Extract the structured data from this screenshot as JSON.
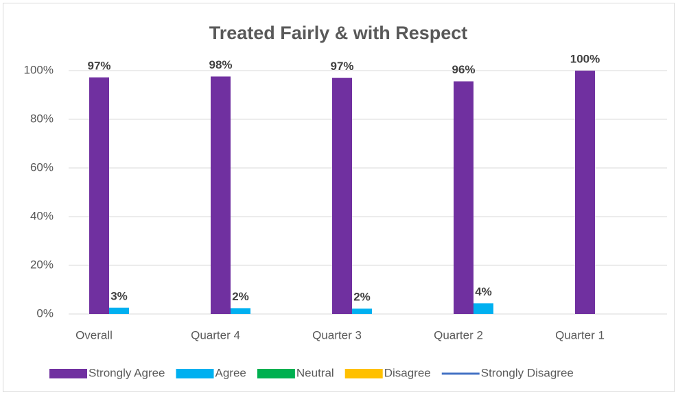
{
  "chart_data": {
    "type": "bar",
    "title": "Treated Fairly & with Respect",
    "categories": [
      "Overall",
      "Quarter 4",
      "Quarter 3",
      "Quarter 2",
      "Quarter 1"
    ],
    "series": [
      {
        "name": "Strongly Agree",
        "color": "#7030a0",
        "values": [
          97.2,
          97.6,
          97.0,
          95.6,
          100
        ],
        "value_labels": [
          "97%",
          "98%",
          "97%",
          "96%",
          "100%"
        ]
      },
      {
        "name": "Agree",
        "color": "#00b0f0",
        "values": [
          2.6,
          2.4,
          2.2,
          4.4,
          null
        ],
        "value_labels": [
          "3%",
          "2%",
          "2%",
          "4%",
          null
        ]
      },
      {
        "name": "Neutral",
        "color": "#00b050",
        "values": [
          null,
          null,
          null,
          null,
          null
        ]
      },
      {
        "name": "Disagree",
        "color": "#ffc000",
        "values": [
          null,
          null,
          null,
          null,
          null
        ]
      },
      {
        "name": "Strongly Disagree",
        "color": "#4472c4",
        "values": [
          null,
          null,
          null,
          null,
          null
        ],
        "type": "line"
      }
    ],
    "ylim": [
      0,
      100
    ],
    "yticks": [
      {
        "value": 0,
        "label": "0%"
      },
      {
        "value": 20,
        "label": "20%"
      },
      {
        "value": 40,
        "label": "40%"
      },
      {
        "value": 60,
        "label": "60%"
      },
      {
        "value": 80,
        "label": "80%"
      },
      {
        "value": 100,
        "label": "100%"
      }
    ],
    "grid": true,
    "legend": "bottom"
  }
}
